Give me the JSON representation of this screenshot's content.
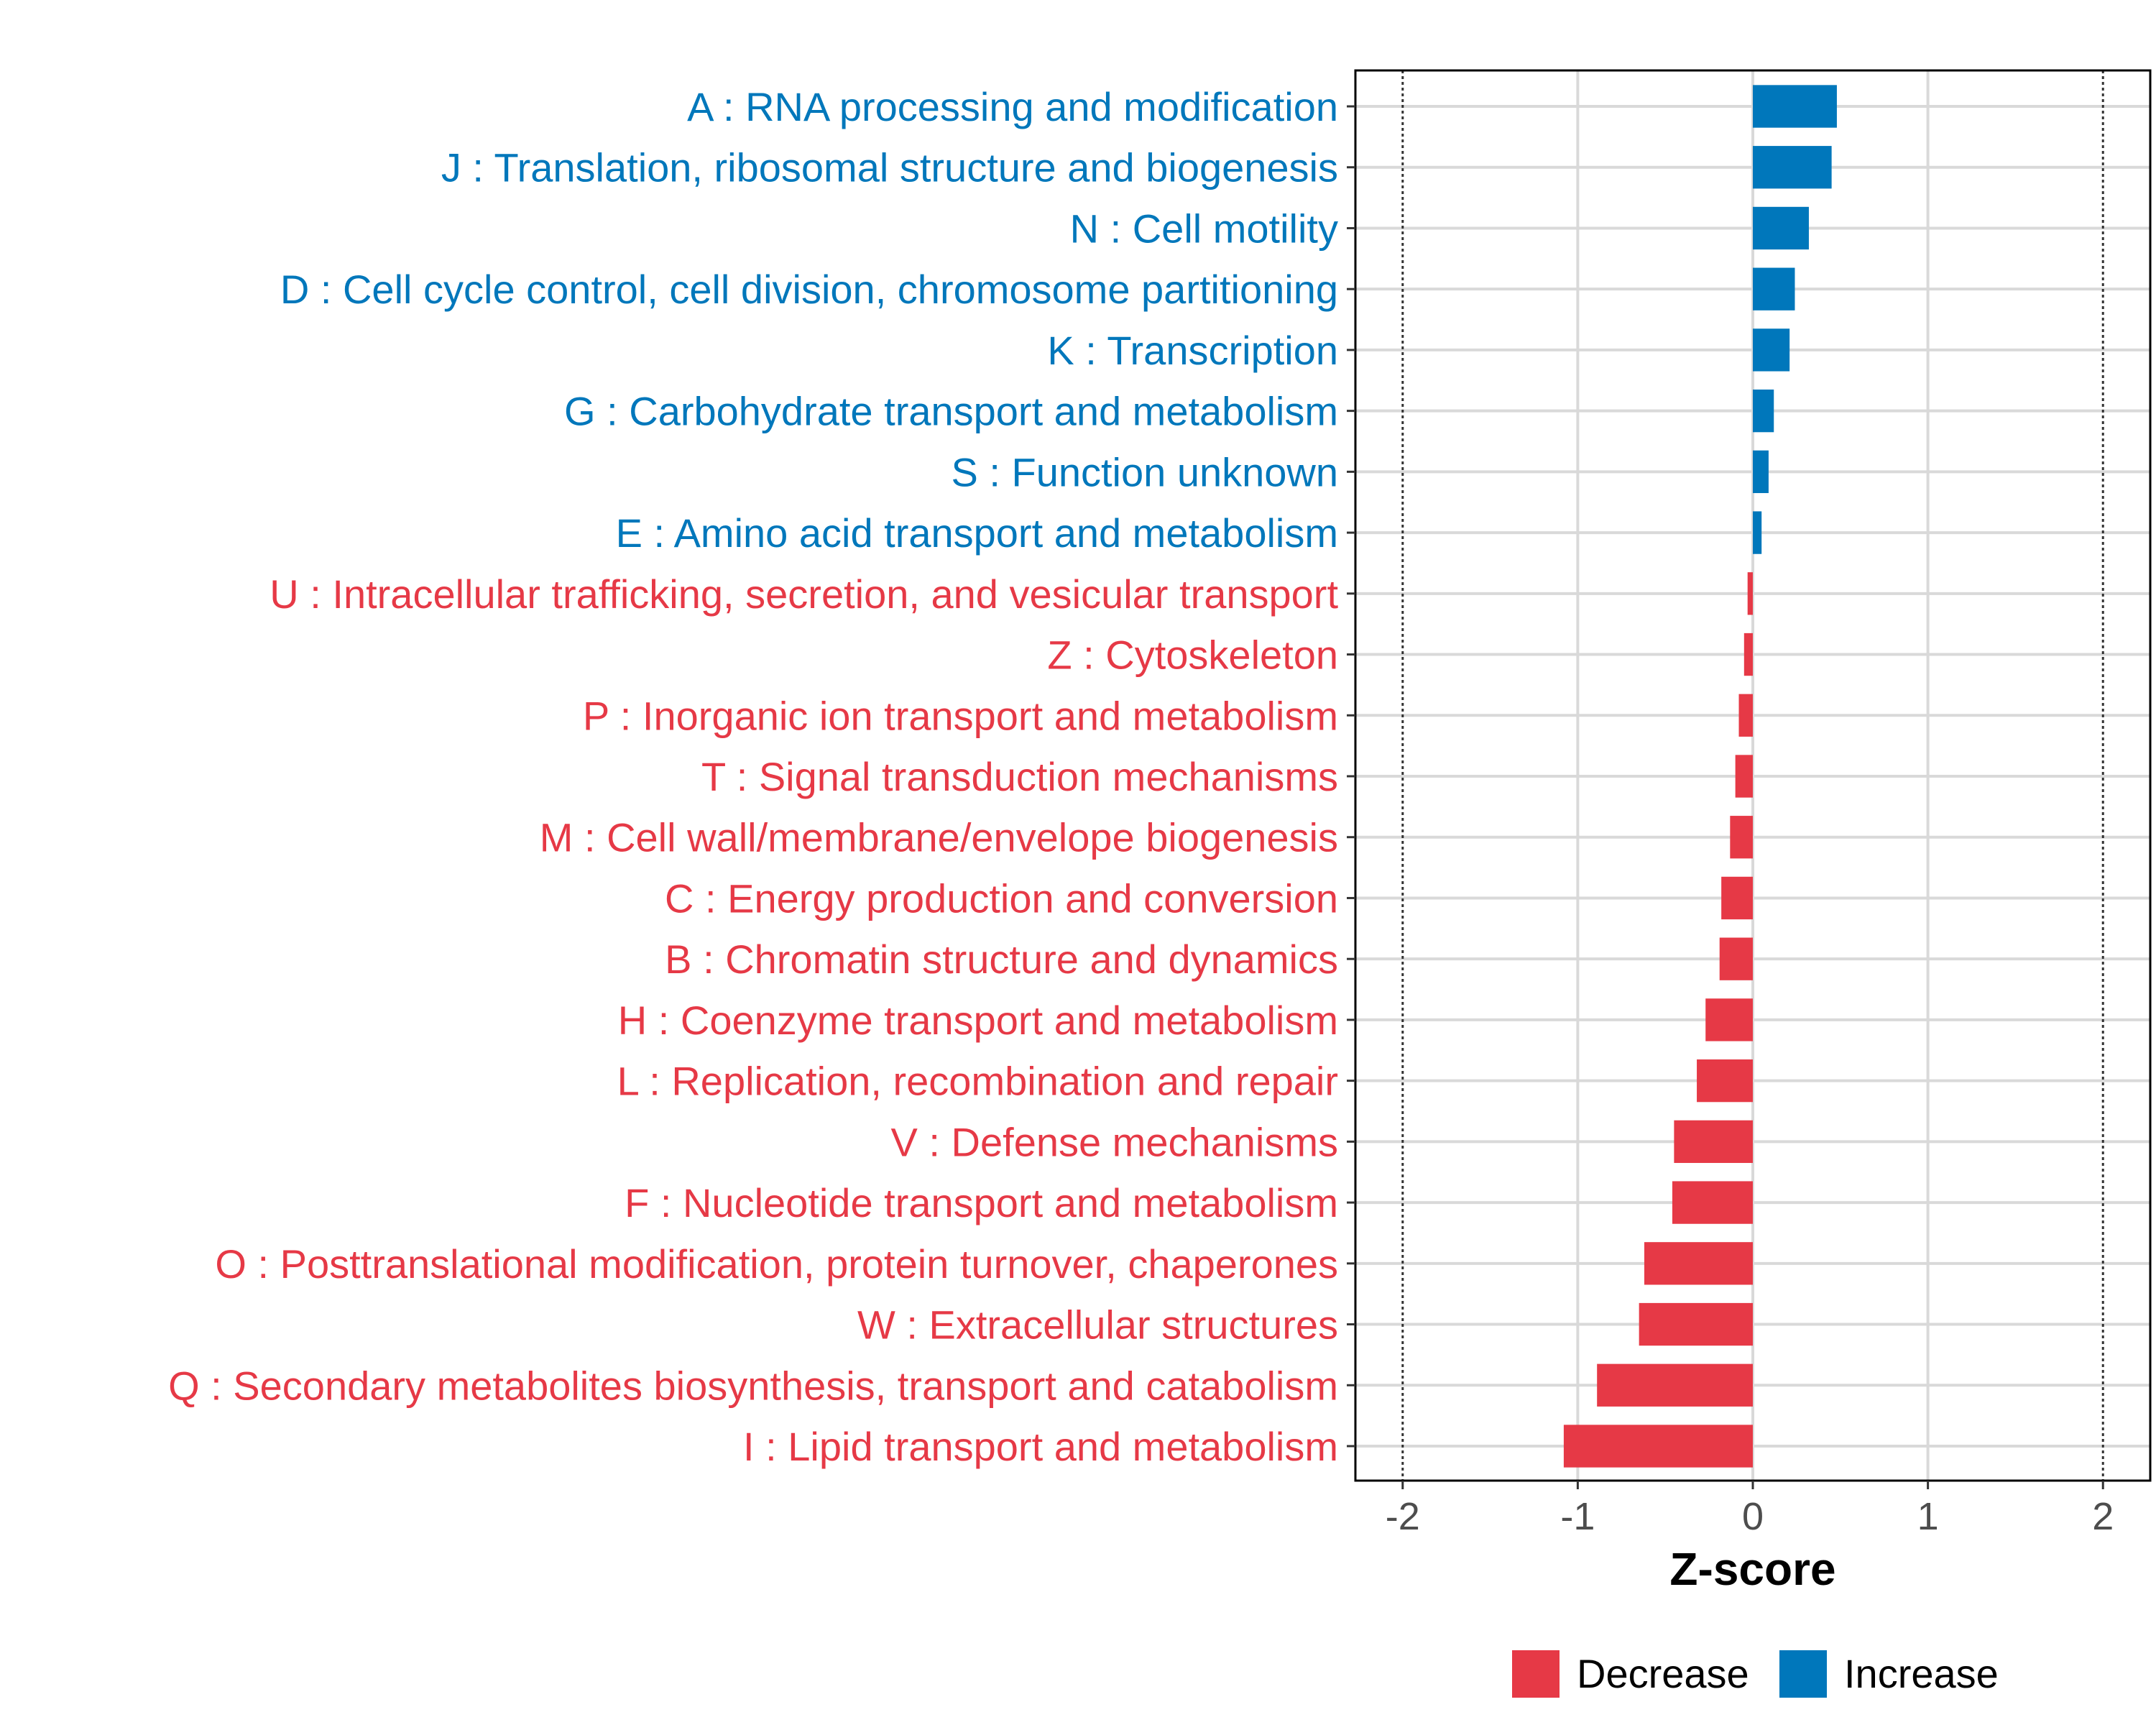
{
  "chart_data": {
    "type": "bar",
    "orientation": "horizontal",
    "xlabel": "Z-score",
    "ylabel": "",
    "xlim": [
      -2.27,
      2.27
    ],
    "x_ticks": [
      -2,
      -1,
      0,
      1,
      2
    ],
    "x_tick_labels": [
      "-2",
      "-1",
      "0",
      "1",
      "2"
    ],
    "reference_lines": [
      -2,
      2
    ],
    "grid": true,
    "legend_position": "bottom",
    "legend": [
      {
        "label": "Decrease",
        "color": "#e63946"
      },
      {
        "label": "Increase",
        "color": "#0077bb"
      }
    ],
    "categories": [
      "A : RNA processing and modification",
      "J : Translation, ribosomal structure and biogenesis",
      "N : Cell motility",
      "D : Cell cycle control, cell division, chromosome partitioning",
      "K : Transcription",
      "G : Carbohydrate transport and metabolism",
      "S : Function unknown",
      "E : Amino acid transport and metabolism",
      "U : Intracellular trafficking, secretion, and vesicular transport",
      "Z : Cytoskeleton",
      "P : Inorganic ion transport and metabolism",
      "T : Signal transduction mechanisms",
      "M : Cell wall/membrane/envelope biogenesis",
      "C : Energy production and conversion",
      "B : Chromatin structure and dynamics",
      "H : Coenzyme transport and metabolism",
      "L : Replication, recombination and repair",
      "V : Defense mechanisms",
      "F : Nucleotide transport and metabolism",
      "O : Posttranslational modification, protein turnover, chaperones",
      "W : Extracellular structures",
      "Q : Secondary metabolites biosynthesis, transport and catabolism",
      "I : Lipid transport and metabolism"
    ],
    "values": [
      0.48,
      0.45,
      0.32,
      0.24,
      0.21,
      0.12,
      0.09,
      0.05,
      -0.03,
      -0.05,
      -0.08,
      -0.1,
      -0.13,
      -0.18,
      -0.19,
      -0.27,
      -0.32,
      -0.45,
      -0.46,
      -0.62,
      -0.65,
      -0.89,
      -1.08
    ],
    "colors": {
      "increase": "#0077bb",
      "decrease": "#e63946"
    }
  }
}
